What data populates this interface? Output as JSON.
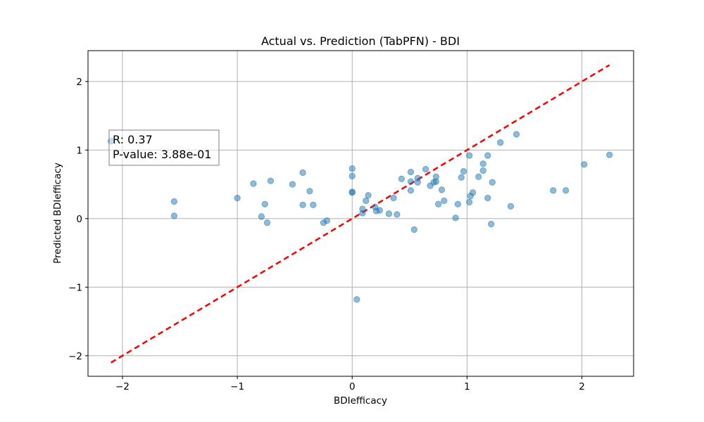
{
  "chart_data": {
    "type": "scatter",
    "title": "Actual vs. Prediction (TabPFN) - BDI",
    "xlabel": "BDIefficacy",
    "ylabel": "Predicted BDIefficacy",
    "xlim": [
      -2.3,
      2.45
    ],
    "ylim": [
      -2.3,
      2.45
    ],
    "xticks": [
      -2,
      -1,
      0,
      1,
      2
    ],
    "yticks": [
      -2,
      -1,
      0,
      1,
      2
    ],
    "xtick_labels": [
      "−2",
      "−1",
      "0",
      "1",
      "2"
    ],
    "ytick_labels": [
      "−2",
      "−1",
      "0",
      "1",
      "2"
    ],
    "grid": true,
    "point_color": "#1f77b4",
    "reference_line": {
      "style": "dashed",
      "color": "#ff0000",
      "x": [
        -2.1,
        2.24
      ],
      "y": [
        -2.1,
        2.24
      ]
    },
    "annotation": {
      "lines": [
        "R: 0.37",
        "P-value: 3.88e-01"
      ]
    },
    "points": [
      [
        -2.1,
        1.13
      ],
      [
        -1.55,
        0.25
      ],
      [
        -1.55,
        0.04
      ],
      [
        -1.0,
        0.3
      ],
      [
        -0.86,
        0.51
      ],
      [
        -0.79,
        0.03
      ],
      [
        -0.76,
        0.21
      ],
      [
        -0.74,
        -0.06
      ],
      [
        -0.71,
        0.55
      ],
      [
        -0.52,
        0.5
      ],
      [
        -0.43,
        0.67
      ],
      [
        -0.43,
        0.2
      ],
      [
        -0.37,
        0.4
      ],
      [
        -0.34,
        0.2
      ],
      [
        -0.25,
        -0.06
      ],
      [
        -0.22,
        -0.03
      ],
      [
        0.0,
        0.73
      ],
      [
        0.0,
        0.62
      ],
      [
        0.0,
        0.39
      ],
      [
        0.0,
        0.38
      ],
      [
        0.04,
        -1.18
      ],
      [
        0.09,
        0.08
      ],
      [
        0.09,
        0.14
      ],
      [
        0.12,
        0.26
      ],
      [
        0.14,
        0.34
      ],
      [
        0.2,
        0.17
      ],
      [
        0.21,
        0.11
      ],
      [
        0.24,
        0.12
      ],
      [
        0.32,
        0.07
      ],
      [
        0.36,
        0.3
      ],
      [
        0.39,
        0.06
      ],
      [
        0.43,
        0.58
      ],
      [
        0.51,
        0.68
      ],
      [
        0.51,
        0.54
      ],
      [
        0.51,
        0.41
      ],
      [
        0.54,
        -0.16
      ],
      [
        0.57,
        0.59
      ],
      [
        0.57,
        0.53
      ],
      [
        0.64,
        0.72
      ],
      [
        0.68,
        0.48
      ],
      [
        0.71,
        0.53
      ],
      [
        0.73,
        0.54
      ],
      [
        0.73,
        0.61
      ],
      [
        0.75,
        0.21
      ],
      [
        0.78,
        0.42
      ],
      [
        0.8,
        0.26
      ],
      [
        0.9,
        0.01
      ],
      [
        0.92,
        0.21
      ],
      [
        0.95,
        0.6
      ],
      [
        0.97,
        0.69
      ],
      [
        1.02,
        0.92
      ],
      [
        1.02,
        0.24
      ],
      [
        1.03,
        0.33
      ],
      [
        1.05,
        0.38
      ],
      [
        1.1,
        0.61
      ],
      [
        1.14,
        0.8
      ],
      [
        1.14,
        0.7
      ],
      [
        1.18,
        0.92
      ],
      [
        1.18,
        0.3
      ],
      [
        1.21,
        -0.08
      ],
      [
        1.22,
        0.53
      ],
      [
        1.29,
        1.11
      ],
      [
        1.38,
        0.18
      ],
      [
        1.43,
        1.23
      ],
      [
        1.75,
        0.41
      ],
      [
        1.86,
        0.41
      ],
      [
        2.02,
        0.79
      ],
      [
        2.24,
        0.93
      ]
    ]
  }
}
